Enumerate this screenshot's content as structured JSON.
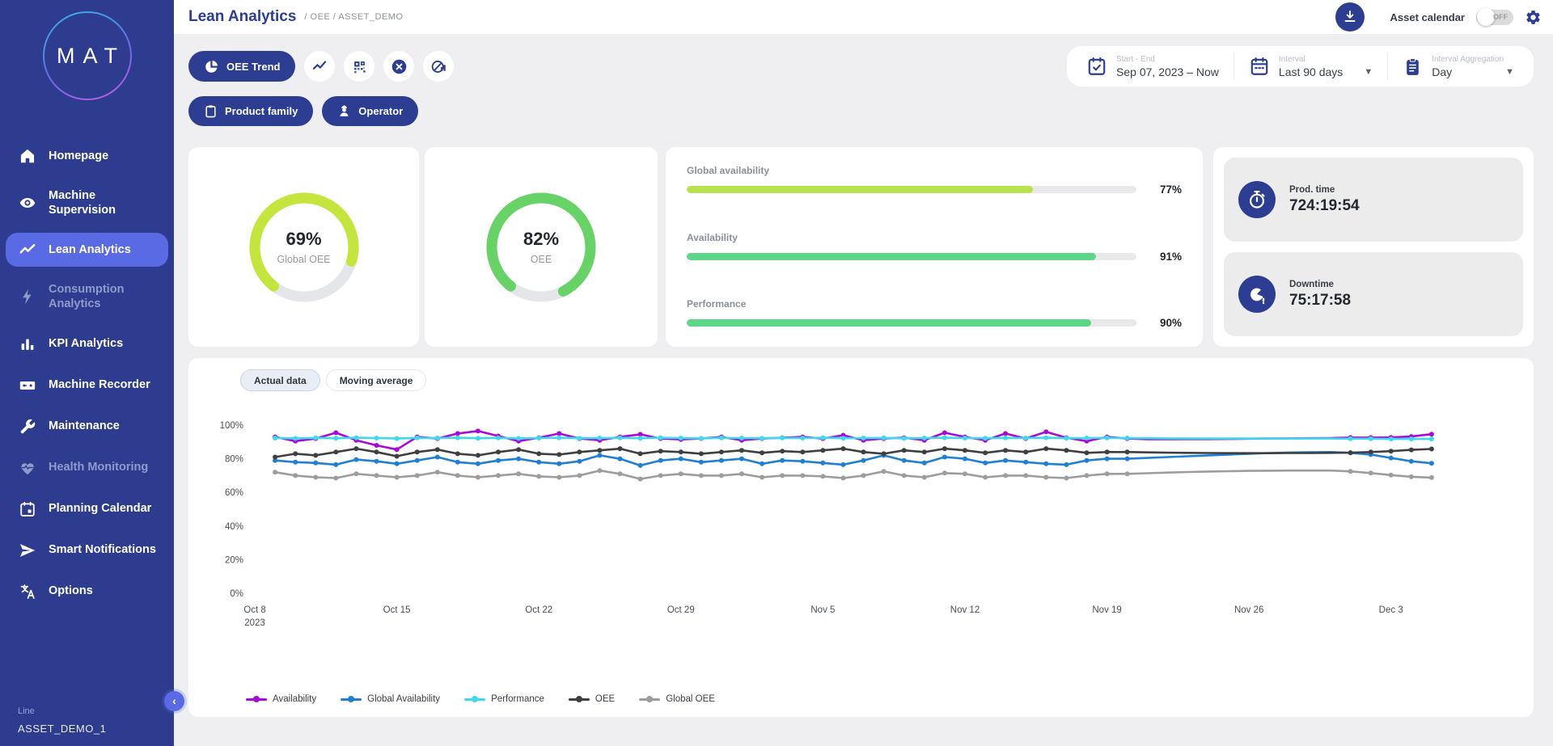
{
  "app": {
    "logo": "MAT"
  },
  "sidebar": {
    "items": [
      {
        "label": "Homepage",
        "icon": "home",
        "state": ""
      },
      {
        "label": "Machine Supervision",
        "icon": "eye",
        "state": ""
      },
      {
        "label": "Lean Analytics",
        "icon": "trend",
        "state": "active"
      },
      {
        "label": "Consumption Analytics",
        "icon": "bolt",
        "state": "muted"
      },
      {
        "label": "KPI Analytics",
        "icon": "bars",
        "state": ""
      },
      {
        "label": "Machine Recorder",
        "icon": "recorder",
        "state": ""
      },
      {
        "label": "Maintenance",
        "icon": "wrench",
        "state": ""
      },
      {
        "label": "Health Monitoring",
        "icon": "heart",
        "state": "muted"
      },
      {
        "label": "Planning Calendar",
        "icon": "calendar",
        "state": ""
      },
      {
        "label": "Smart Notifications",
        "icon": "send",
        "state": ""
      },
      {
        "label": "Options",
        "icon": "translate",
        "state": ""
      }
    ],
    "footer": {
      "line_label": "Line",
      "asset_name": "ASSET_DEMO_1"
    },
    "collapse_icon": "chevron-left-icon"
  },
  "header": {
    "title": "Lean Analytics",
    "breadcrumb": "/ OEE  / ASSET_DEMO",
    "download_icon": "download-icon",
    "asset_calendar_label": "Asset calendar",
    "toggle_state": "OFF",
    "settings_icon": "gear-icon"
  },
  "toolbar": {
    "primary_tab": "OEE Trend",
    "primary_tab_icon": "pie-chart-icon",
    "icon_buttons": [
      "line-chart-icon",
      "qr-grid-icon",
      "close-circle-icon",
      "losses-chart-icon"
    ],
    "filters": [
      {
        "label": "Product family",
        "icon": "clipboard-icon"
      },
      {
        "label": "Operator",
        "icon": "operator-icon"
      }
    ]
  },
  "date_controls": {
    "start_end": {
      "label": "Start - End",
      "value": "Sep 07, 2023 – Now",
      "icon": "calendar-check-icon"
    },
    "interval": {
      "label": "Interval",
      "value": "Last 90 days",
      "icon": "calendar-icon"
    },
    "aggregation": {
      "label": "Interval Aggregation",
      "value": "Day",
      "icon": "clipboard-list-icon"
    }
  },
  "kpis": {
    "global_oee": {
      "pct": 69,
      "display": "69%",
      "label": "Global OEE",
      "color": "#c3e53c",
      "track": "#e4e6e9"
    },
    "oee": {
      "pct": 82,
      "display": "82%",
      "label": "OEE",
      "color": "#67d266",
      "track": "#e4e6e9"
    },
    "bars": [
      {
        "label": "Global availability",
        "pct": 77,
        "display": "77%",
        "color": "#b9e24f"
      },
      {
        "label": "Availability",
        "pct": 91,
        "display": "91%",
        "color": "#5ed687"
      },
      {
        "label": "Performance",
        "pct": 90,
        "display": "90%",
        "color": "#5ed687"
      }
    ],
    "times": [
      {
        "label": "Prod. time",
        "value": "724:19:54",
        "icon": "stopwatch-icon"
      },
      {
        "label": "Downtime",
        "value": "75:17:58",
        "icon": "downtime-clock-icon"
      }
    ]
  },
  "chart_tabs": [
    "Actual data",
    "Moving average"
  ],
  "chart_data": {
    "type": "line",
    "title": "OEE Trend - Actual data",
    "ylim": [
      0,
      100
    ],
    "y_tick_values": [
      0,
      20,
      40,
      60,
      80,
      100
    ],
    "y_tick_labels": [
      "0%",
      "20%",
      "40%",
      "60%",
      "80%",
      "100%"
    ],
    "x_ticks": [
      {
        "day": 0,
        "label": "Oct 8",
        "sub": "2023"
      },
      {
        "day": 7,
        "label": "Oct 15"
      },
      {
        "day": 14,
        "label": "Oct 22"
      },
      {
        "day": 21,
        "label": "Oct 29"
      },
      {
        "day": 28,
        "label": "Nov 5"
      },
      {
        "day": 35,
        "label": "Nov 12"
      },
      {
        "day": 42,
        "label": "Nov 19"
      },
      {
        "day": 49,
        "label": "Nov 26"
      },
      {
        "day": 56,
        "label": "Dec 3"
      }
    ],
    "x_unit": "day index from Oct 8 2023, data points daily starting Oct 9",
    "marker_hidden_days": [
      44,
      53
    ],
    "grid": false,
    "legend_position": "bottom-left",
    "draw_order": [
      4,
      1,
      3,
      0,
      2
    ],
    "series": [
      {
        "name": "Availability",
        "color": "#aa08d8",
        "values": [
          93,
          90.5,
          92,
          95.5,
          91,
          88,
          85.5,
          93,
          92,
          95,
          96.5,
          93.5,
          90.5,
          92.5,
          95,
          92,
          91,
          93,
          94.5,
          92,
          91.5,
          92,
          93,
          91,
          92,
          92.5,
          93,
          92,
          94,
          91,
          92,
          92.5,
          91,
          95.5,
          93,
          91,
          95,
          92,
          96,
          92.5,
          90.5,
          93,
          92,
          91.6,
          91.6,
          91.7,
          91.7,
          91.8,
          91.9,
          92,
          92.1,
          92.2,
          92.3,
          92.6,
          92.6,
          92.7,
          93.2,
          94.6
        ]
      },
      {
        "name": "Global Availability",
        "color": "#1f7fd4",
        "values": [
          79,
          78,
          77.5,
          76.5,
          79.5,
          78.5,
          77,
          79,
          81,
          78,
          77,
          79,
          80,
          78,
          77,
          78.5,
          82,
          80,
          76,
          79,
          80,
          78,
          79,
          80,
          77,
          79,
          78.5,
          77.5,
          76.5,
          79,
          82,
          79,
          77.5,
          81,
          80,
          77.5,
          79,
          78,
          77,
          76.5,
          79,
          80,
          80,
          80.5,
          81,
          81.5,
          82,
          82.5,
          83,
          83.4,
          83.7,
          83.9,
          84,
          83.5,
          82.5,
          80.5,
          78.5,
          77.3
        ]
      },
      {
        "name": "Performance",
        "color": "#3cd9ef",
        "values": [
          92.3,
          92.1,
          92.4,
          92.2,
          92.5,
          92.3,
          92,
          92.4,
          92.3,
          92.5,
          92.2,
          92.4,
          92.1,
          92.3,
          92.5,
          92.2,
          92.3,
          92.4,
          92.2,
          92.5,
          92.3,
          92.1,
          92.4,
          92.3,
          92.2,
          92.4,
          92.3,
          92.5,
          92.2,
          92.3,
          92.4,
          92.1,
          92.3,
          92.5,
          92.3,
          92.2,
          92.4,
          92.3,
          92.5,
          92.2,
          92.3,
          92.4,
          92.3,
          92.2,
          92.1,
          92.1,
          92,
          92,
          92,
          92,
          92,
          92,
          92,
          91.9,
          91.9,
          91.8,
          91.8,
          91.8
        ]
      },
      {
        "name": "OEE",
        "color": "#3f3f3f",
        "values": [
          81,
          83,
          82,
          84,
          86,
          84,
          81.5,
          84,
          85.5,
          83,
          82,
          84,
          85.5,
          83,
          82.5,
          84,
          85,
          86,
          83,
          84.5,
          84,
          83,
          84,
          85,
          83.5,
          84.5,
          84,
          85,
          86,
          84,
          83,
          85,
          84,
          86,
          85,
          83.5,
          85,
          84,
          86,
          85,
          83.5,
          84,
          84,
          83.8,
          83.6,
          83.5,
          83.4,
          83.3,
          83.3,
          83.3,
          83.4,
          83.4,
          83.5,
          83.6,
          84,
          84.5,
          85.3,
          85.8
        ]
      },
      {
        "name": "Global OEE",
        "color": "#9d9d9d",
        "values": [
          72,
          70,
          69,
          68.5,
          71,
          70,
          69,
          70,
          72,
          70,
          69,
          70,
          71,
          69.5,
          69,
          70,
          73,
          71,
          68,
          70,
          71,
          70,
          70,
          71,
          69,
          70,
          70,
          69.5,
          68.5,
          70,
          72.5,
          70,
          69,
          71.5,
          71,
          69,
          70,
          70,
          69,
          68.5,
          70,
          71,
          71,
          71.4,
          71.8,
          72.1,
          72.4,
          72.6,
          72.8,
          72.9,
          73,
          73,
          73,
          72.5,
          71.5,
          70.3,
          69.3,
          68.8
        ]
      }
    ]
  }
}
